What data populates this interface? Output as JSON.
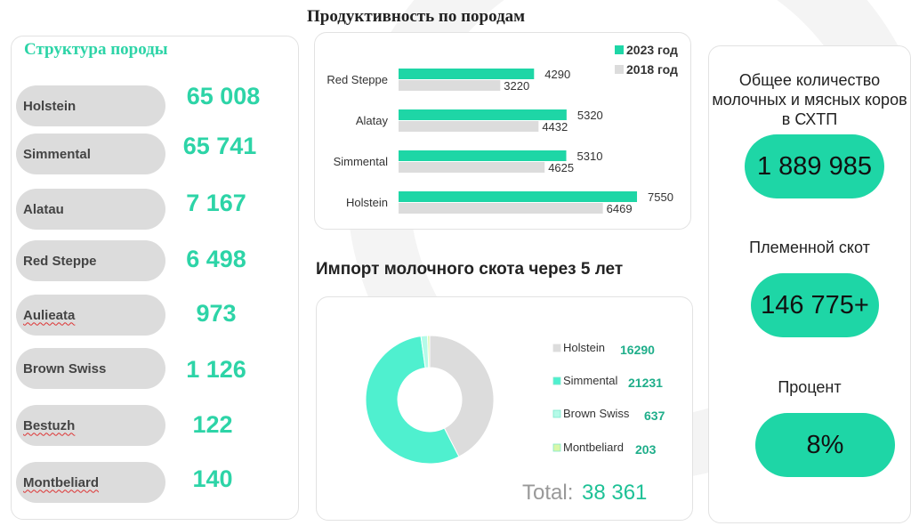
{
  "colors": {
    "accent": "#1ed6a6",
    "accent_text": "#2dd4a7",
    "bar_2018": "#dcdcdc",
    "pill_bg": "#dcdcdc"
  },
  "left_panel": {
    "title": "Структура  породы",
    "breeds": [
      {
        "name": "Holstein",
        "value": "65 008"
      },
      {
        "name": "Simmental",
        "value": "65 741"
      },
      {
        "name": "Alatau",
        "value": "7 167"
      },
      {
        "name": "Red Steppe",
        "value": "6 498"
      },
      {
        "name": "Aulieata",
        "value": "973"
      },
      {
        "name": "Brown Swiss",
        "value": "1 126"
      },
      {
        "name": "Bestuzh",
        "value": "122"
      },
      {
        "name": "Montbeliard",
        "value": "140"
      }
    ]
  },
  "productivity_title": "Продуктивность  по породам",
  "import_title": "Импорт молочного скота  через 5 лет",
  "chart_data": [
    {
      "type": "bar",
      "orientation": "horizontal",
      "categories": [
        "Red Steppe",
        "Alatay",
        "Simmental",
        "Holstein"
      ],
      "series": [
        {
          "name": "2023 год",
          "color": "#1ed6a6",
          "values": [
            4290,
            5320,
            5310,
            7550
          ]
        },
        {
          "name": "2018 год",
          "color": "#dcdcdc",
          "values": [
            3220,
            4432,
            4625,
            6469
          ]
        }
      ],
      "legend": "top-right",
      "xlim": [
        0,
        8000
      ],
      "grid": false
    },
    {
      "type": "pie",
      "donut": true,
      "labels": [
        "Holstein",
        "Simmental",
        "Brown Swiss",
        "Montbeliard"
      ],
      "values": [
        16290,
        21231,
        637,
        203
      ],
      "value_labels": [
        "16290",
        "21231",
        "637",
        "203"
      ],
      "colors": [
        "#dcdcdc",
        "#4ff0cf",
        "#b5fbe8",
        "#d9f7a8"
      ],
      "legend": "right",
      "total_label": "Total:",
      "total_value": "38 361"
    }
  ],
  "right_panel": {
    "items": [
      {
        "label": "Общее количество молочных и мясных коров в СХТП",
        "value": "1 889 985"
      },
      {
        "label": "Племенной  скот",
        "value": "146 775+"
      },
      {
        "label": "Процент",
        "value": "8%"
      }
    ]
  }
}
